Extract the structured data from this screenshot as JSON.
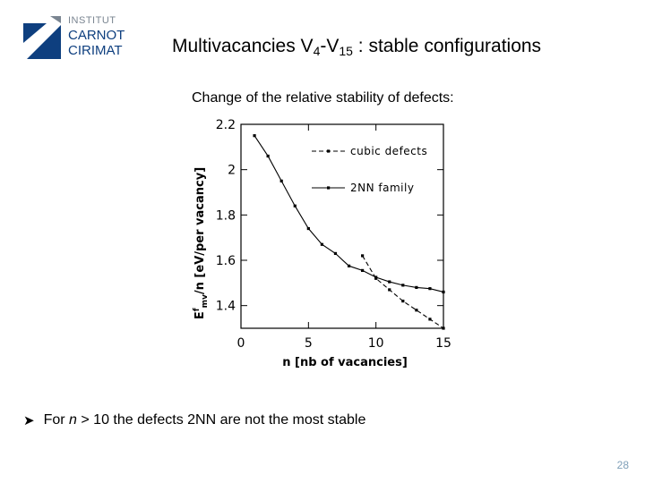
{
  "logo": {
    "line1": "INSTITUT",
    "line2": "CARNOT",
    "line3": "CIRIMAT",
    "colors": {
      "navy": "#0e3f7f",
      "grey": "#7a8591"
    }
  },
  "title": {
    "prefix": "Multivacancies V",
    "sub1": "4",
    "middle": "-V",
    "sub2": "15",
    "suffix": " : stable configurations"
  },
  "subtitle": "Change of the relative stability of defects:",
  "chart_data": {
    "type": "line",
    "xlabel": "n [nb of vacancies]",
    "ylabel_main": "E",
    "ylabel_sup": "f",
    "ylabel_sub": "mv",
    "ylabel_rest": "/n [eV/per vacancy]",
    "xlim": [
      0,
      15
    ],
    "ylim": [
      1.3,
      2.2
    ],
    "x_ticks": [
      0,
      5,
      10,
      15
    ],
    "y_ticks": [
      1.4,
      1.6,
      1.8,
      2,
      2.2
    ],
    "y_tick_labels": [
      "1.4",
      "1.6",
      "1.8",
      "2",
      "2.2"
    ],
    "grid": false,
    "legend_position": "top-right",
    "series": [
      {
        "name": "cubic defects",
        "style": "dashed",
        "x": [
          9,
          10,
          11,
          12,
          13,
          14,
          15
        ],
        "y": [
          1.62,
          1.52,
          1.47,
          1.42,
          1.38,
          1.34,
          1.3
        ]
      },
      {
        "name": "2NN family",
        "style": "solid",
        "x": [
          1,
          2,
          3,
          4,
          5,
          6,
          7,
          8,
          9,
          10,
          11,
          12,
          13,
          14,
          15
        ],
        "y": [
          2.15,
          2.06,
          1.95,
          1.84,
          1.74,
          1.67,
          1.63,
          1.575,
          1.555,
          1.525,
          1.505,
          1.49,
          1.48,
          1.475,
          1.46
        ]
      }
    ]
  },
  "bullet": {
    "prefix": "For ",
    "var": "n",
    "rest": " > 10 the defects 2NN are not the most stable"
  },
  "page_number": "28"
}
